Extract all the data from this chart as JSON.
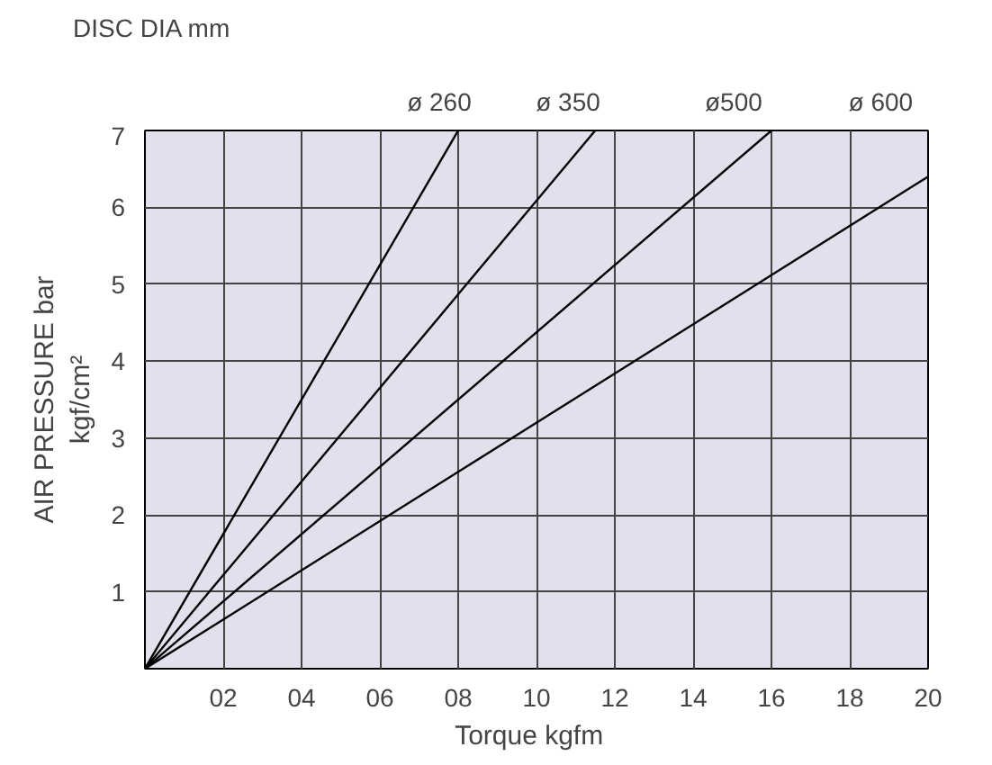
{
  "chart_data": {
    "type": "line",
    "title": "DISC DIA mm",
    "xlabel": "Torque   kgfm",
    "ylabel": "AIR PRESSURE bar\nkgf/cm²",
    "xlim": [
      0,
      20
    ],
    "ylim": [
      0,
      7
    ],
    "xticks": [
      {
        "value": 2,
        "label": "02"
      },
      {
        "value": 4,
        "label": "04"
      },
      {
        "value": 6,
        "label": "06"
      },
      {
        "value": 8,
        "label": "08"
      },
      10,
      12,
      14,
      16,
      18,
      20
    ],
    "yticks": [
      1,
      2,
      3,
      4,
      5,
      6,
      7
    ],
    "grid": true,
    "line_style": "solid",
    "marker": "none",
    "series": [
      {
        "name": "ø 260",
        "color": "#000000",
        "x": [
          0,
          8
        ],
        "values": [
          0,
          7
        ]
      },
      {
        "name": "ø 350",
        "color": "#000000",
        "x": [
          0,
          11.5
        ],
        "values": [
          0,
          7
        ]
      },
      {
        "name": "ø500",
        "color": "#000000",
        "x": [
          0,
          16
        ],
        "values": [
          0,
          7
        ]
      },
      {
        "name": "ø 600",
        "color": "#000000",
        "x": [
          0,
          20
        ],
        "values": [
          0,
          6.4
        ]
      }
    ]
  }
}
